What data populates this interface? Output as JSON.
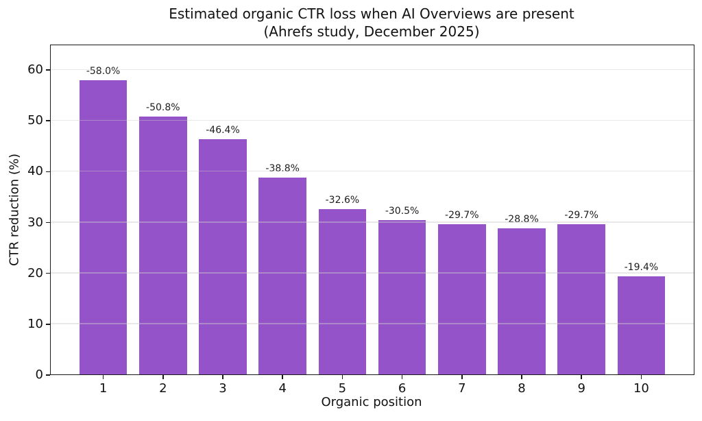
{
  "chart_data": {
    "type": "bar",
    "title_line1": "Estimated organic CTR loss when AI Overviews are present",
    "title_line2": "(Ahrefs study, December 2025)",
    "xlabel": "Organic position",
    "ylabel": "CTR reduction (%)",
    "categories": [
      "1",
      "2",
      "3",
      "4",
      "5",
      "6",
      "7",
      "8",
      "9",
      "10"
    ],
    "values": [
      58.0,
      50.8,
      46.4,
      38.8,
      32.6,
      30.5,
      29.7,
      28.8,
      29.7,
      19.4
    ],
    "bar_labels": [
      "-58.0%",
      "-50.8%",
      "-46.4%",
      "-38.8%",
      "-32.6%",
      "-30.5%",
      "-29.7%",
      "-28.8%",
      "-29.7%",
      "-19.4%"
    ],
    "yticks": [
      0,
      10,
      20,
      30,
      40,
      50,
      60
    ],
    "ylim": [
      0,
      65
    ],
    "xlim": [
      0.11,
      10.89
    ],
    "bar_width_units": 0.8,
    "bar_color": "#9453c9",
    "grid": true,
    "grid_axis": "y",
    "grid_above_bars": true,
    "legend_position": "none",
    "frame_color": "#1a1a1a",
    "background_color": "#ffffff"
  }
}
